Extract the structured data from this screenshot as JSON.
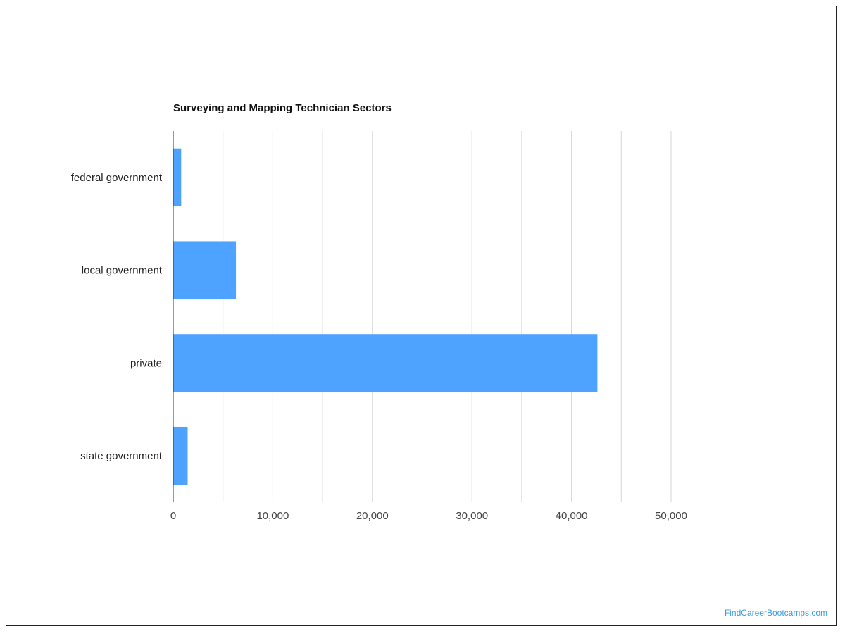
{
  "chart_data": {
    "type": "bar",
    "orientation": "horizontal",
    "title": "Surveying and Mapping Technician Sectors",
    "xlabel": "",
    "ylabel": "",
    "categories": [
      "federal government",
      "local government",
      "private",
      "state government"
    ],
    "values": [
      800,
      6300,
      42600,
      1450
    ],
    "xlim": [
      0,
      50000
    ],
    "ticks": [
      0,
      10000,
      20000,
      30000,
      40000,
      50000
    ],
    "tick_labels": [
      "0",
      "10,000",
      "20,000",
      "30,000",
      "40,000",
      "50,000"
    ],
    "grid": true,
    "legend": "none",
    "bar_color": "#4da3ff",
    "gridline_color": "#d6d6d6",
    "axis_color": "#333333"
  },
  "watermark": "FindCareerBootcamps.com"
}
